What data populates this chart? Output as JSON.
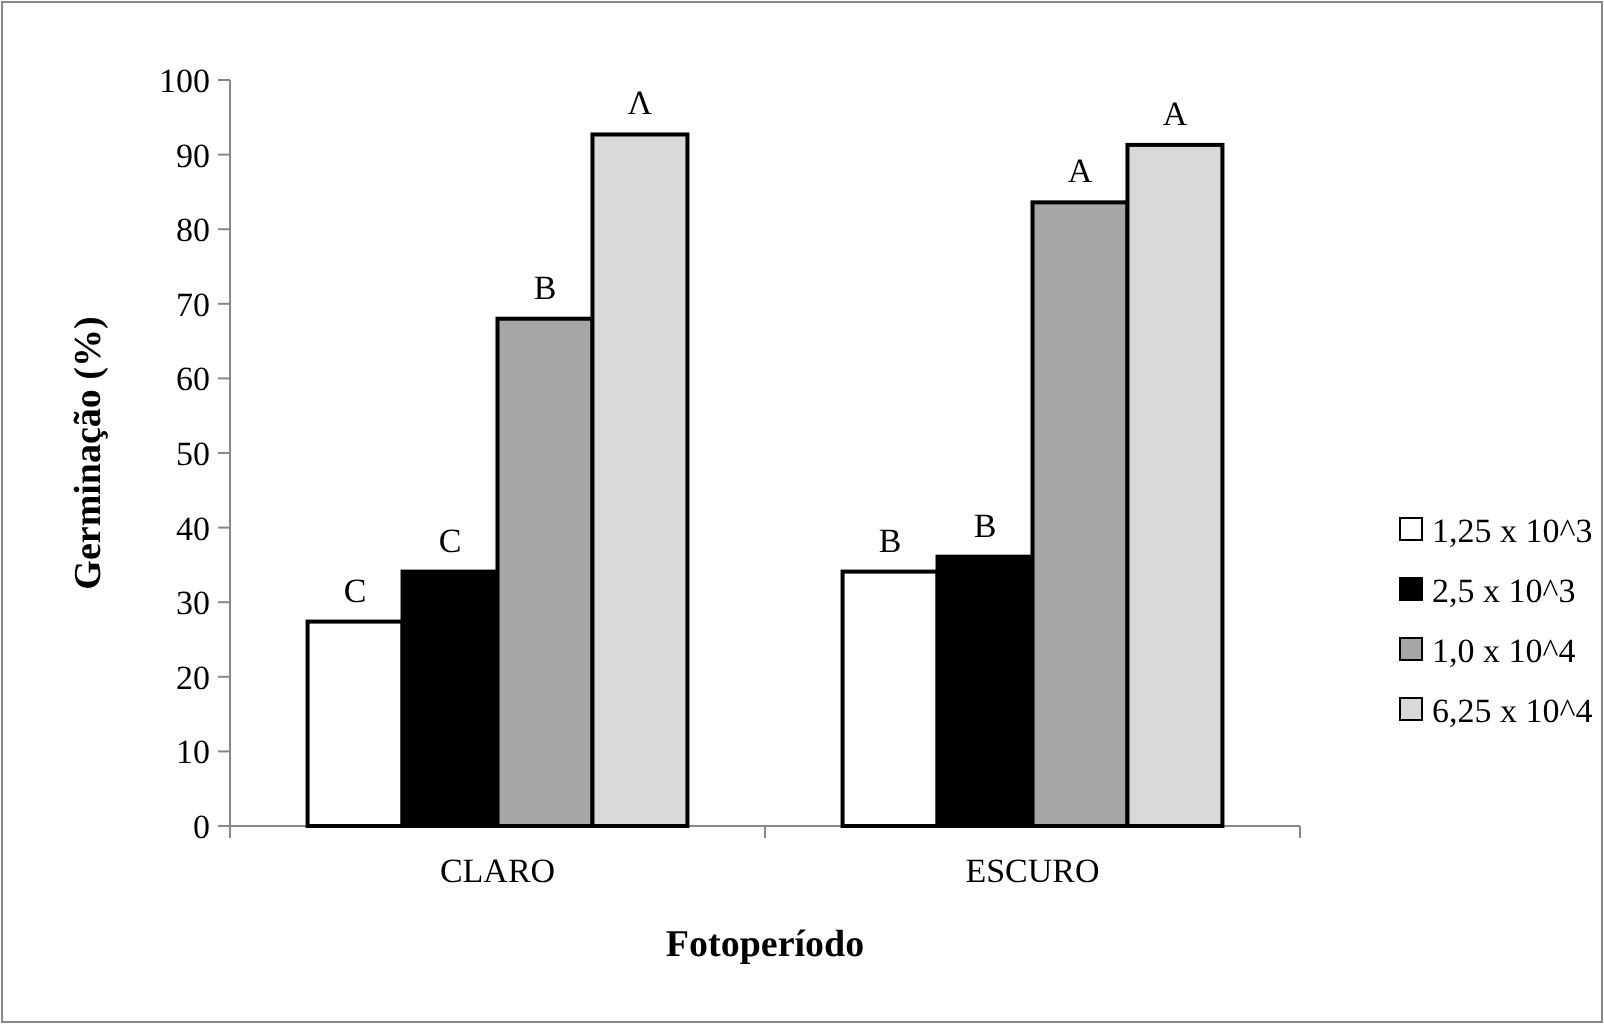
{
  "chart_data": {
    "type": "bar",
    "xlabel": "Fotoperíodo",
    "ylabel": "Germinação (%)",
    "categories": [
      "CLARO",
      "ESCURO"
    ],
    "series": [
      {
        "name": "1,25 x 10^3",
        "color": "#ffffff",
        "values": [
          27.4,
          34.1
        ],
        "value_labels": [
          "C",
          "B"
        ]
      },
      {
        "name": "2,5 x 10^3",
        "color": "#000000",
        "values": [
          34.1,
          36.1
        ],
        "value_labels": [
          "C",
          "B"
        ]
      },
      {
        "name": "1,0 x 10^4",
        "color": "#a6a6a6",
        "values": [
          68.0,
          83.6
        ],
        "value_labels": [
          "B",
          "A"
        ]
      },
      {
        "name": "6,25 x 10^4",
        "color": "#d9d9d9",
        "values": [
          92.7,
          91.3
        ],
        "value_labels": [
          "Λ",
          "A"
        ]
      }
    ],
    "ylim": [
      0,
      100
    ],
    "yticks": [
      0,
      10,
      20,
      30,
      40,
      50,
      60,
      70,
      80,
      90,
      100
    ],
    "grid": false,
    "legend": "right"
  }
}
